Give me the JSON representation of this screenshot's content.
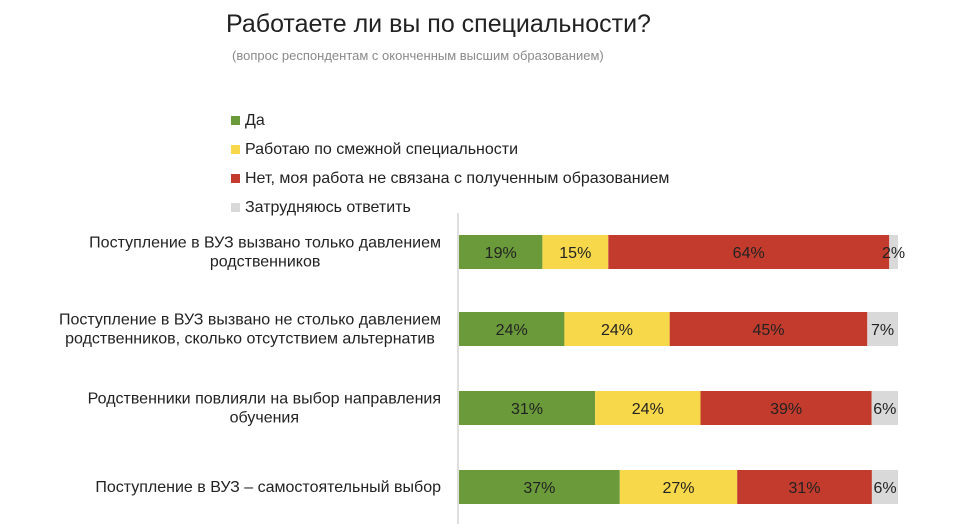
{
  "title": "Работаете ли вы по специальности?",
  "subtitle": "(вопрос респондентам с оконченным высшим образованием)",
  "colors": {
    "series": [
      "#6a9a3a",
      "#f7d84a",
      "#c23b2c",
      "#d9d9d9"
    ],
    "axis": "#bfbfbf"
  },
  "chart_data": {
    "type": "bar",
    "orientation": "horizontal",
    "stacked": "percent",
    "title": "Работаете ли вы по специальности?",
    "subtitle": "(вопрос респондентам с оконченным высшим образованием)",
    "legend_position": "top-left",
    "categories": [
      [
        "Поступление в ВУЗ вызвано только давлением",
        "родственников"
      ],
      [
        "Поступление в ВУЗ вызвано не столько давлением",
        "родственников, сколько отсутствием альтернатив"
      ],
      [
        "Родственники повлияли на выбор направления",
        "обучения"
      ],
      [
        "Поступление в ВУЗ – самостоятельный выбор"
      ]
    ],
    "series": [
      {
        "name": "Да",
        "values": [
          19,
          24,
          31,
          37
        ],
        "labels": [
          "19%",
          "24%",
          "31%",
          "37%"
        ]
      },
      {
        "name": "Работаю по смежной специальности",
        "values": [
          15,
          24,
          24,
          27
        ],
        "labels": [
          "15%",
          "24%",
          "24%",
          "27%"
        ]
      },
      {
        "name": "Нет, моя работа не связана с полученным образованием",
        "values": [
          64,
          45,
          39,
          31
        ],
        "labels": [
          "64%",
          "45%",
          "39%",
          "31%"
        ]
      },
      {
        "name": "Затрудняюсь ответить",
        "values": [
          2,
          7,
          6,
          6
        ],
        "labels": [
          "2%",
          "7%",
          "6%",
          "6%"
        ]
      }
    ]
  }
}
